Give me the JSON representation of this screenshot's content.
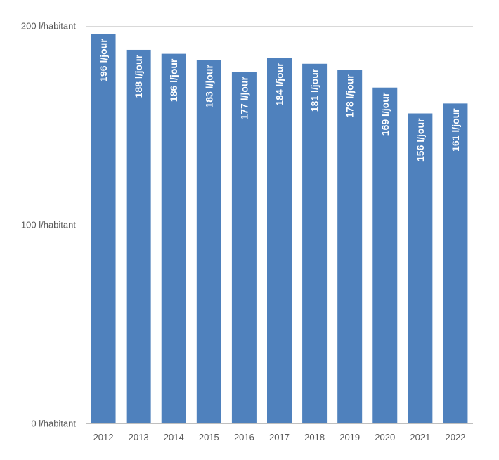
{
  "chart_data": {
    "type": "bar",
    "categories": [
      "2012",
      "2013",
      "2014",
      "2015",
      "2016",
      "2017",
      "2018",
      "2019",
      "2020",
      "2021",
      "2022"
    ],
    "values": [
      196,
      188,
      186,
      183,
      177,
      184,
      181,
      178,
      169,
      156,
      161
    ],
    "data_labels": [
      "196 l/jour",
      "188 l/jour",
      "186 l/jour",
      "183 l/jour",
      "177 l/jour",
      "184 l/jour",
      "181 l/jour",
      "178 l/jour",
      "169 l/jour",
      "156 l/jour",
      "161 l/jour"
    ],
    "y_ticks": [
      0,
      100,
      200
    ],
    "y_tick_labels": [
      "0 l/habitant",
      "100 l/habitant",
      "200 l/habitant"
    ],
    "ylim": [
      0,
      200
    ],
    "grid": true,
    "colors": {
      "bar": "#4f81bd",
      "grid": "#d9d9d9",
      "axis": "#bfbfbf",
      "text": "#595959",
      "label": "#ffffff"
    }
  }
}
